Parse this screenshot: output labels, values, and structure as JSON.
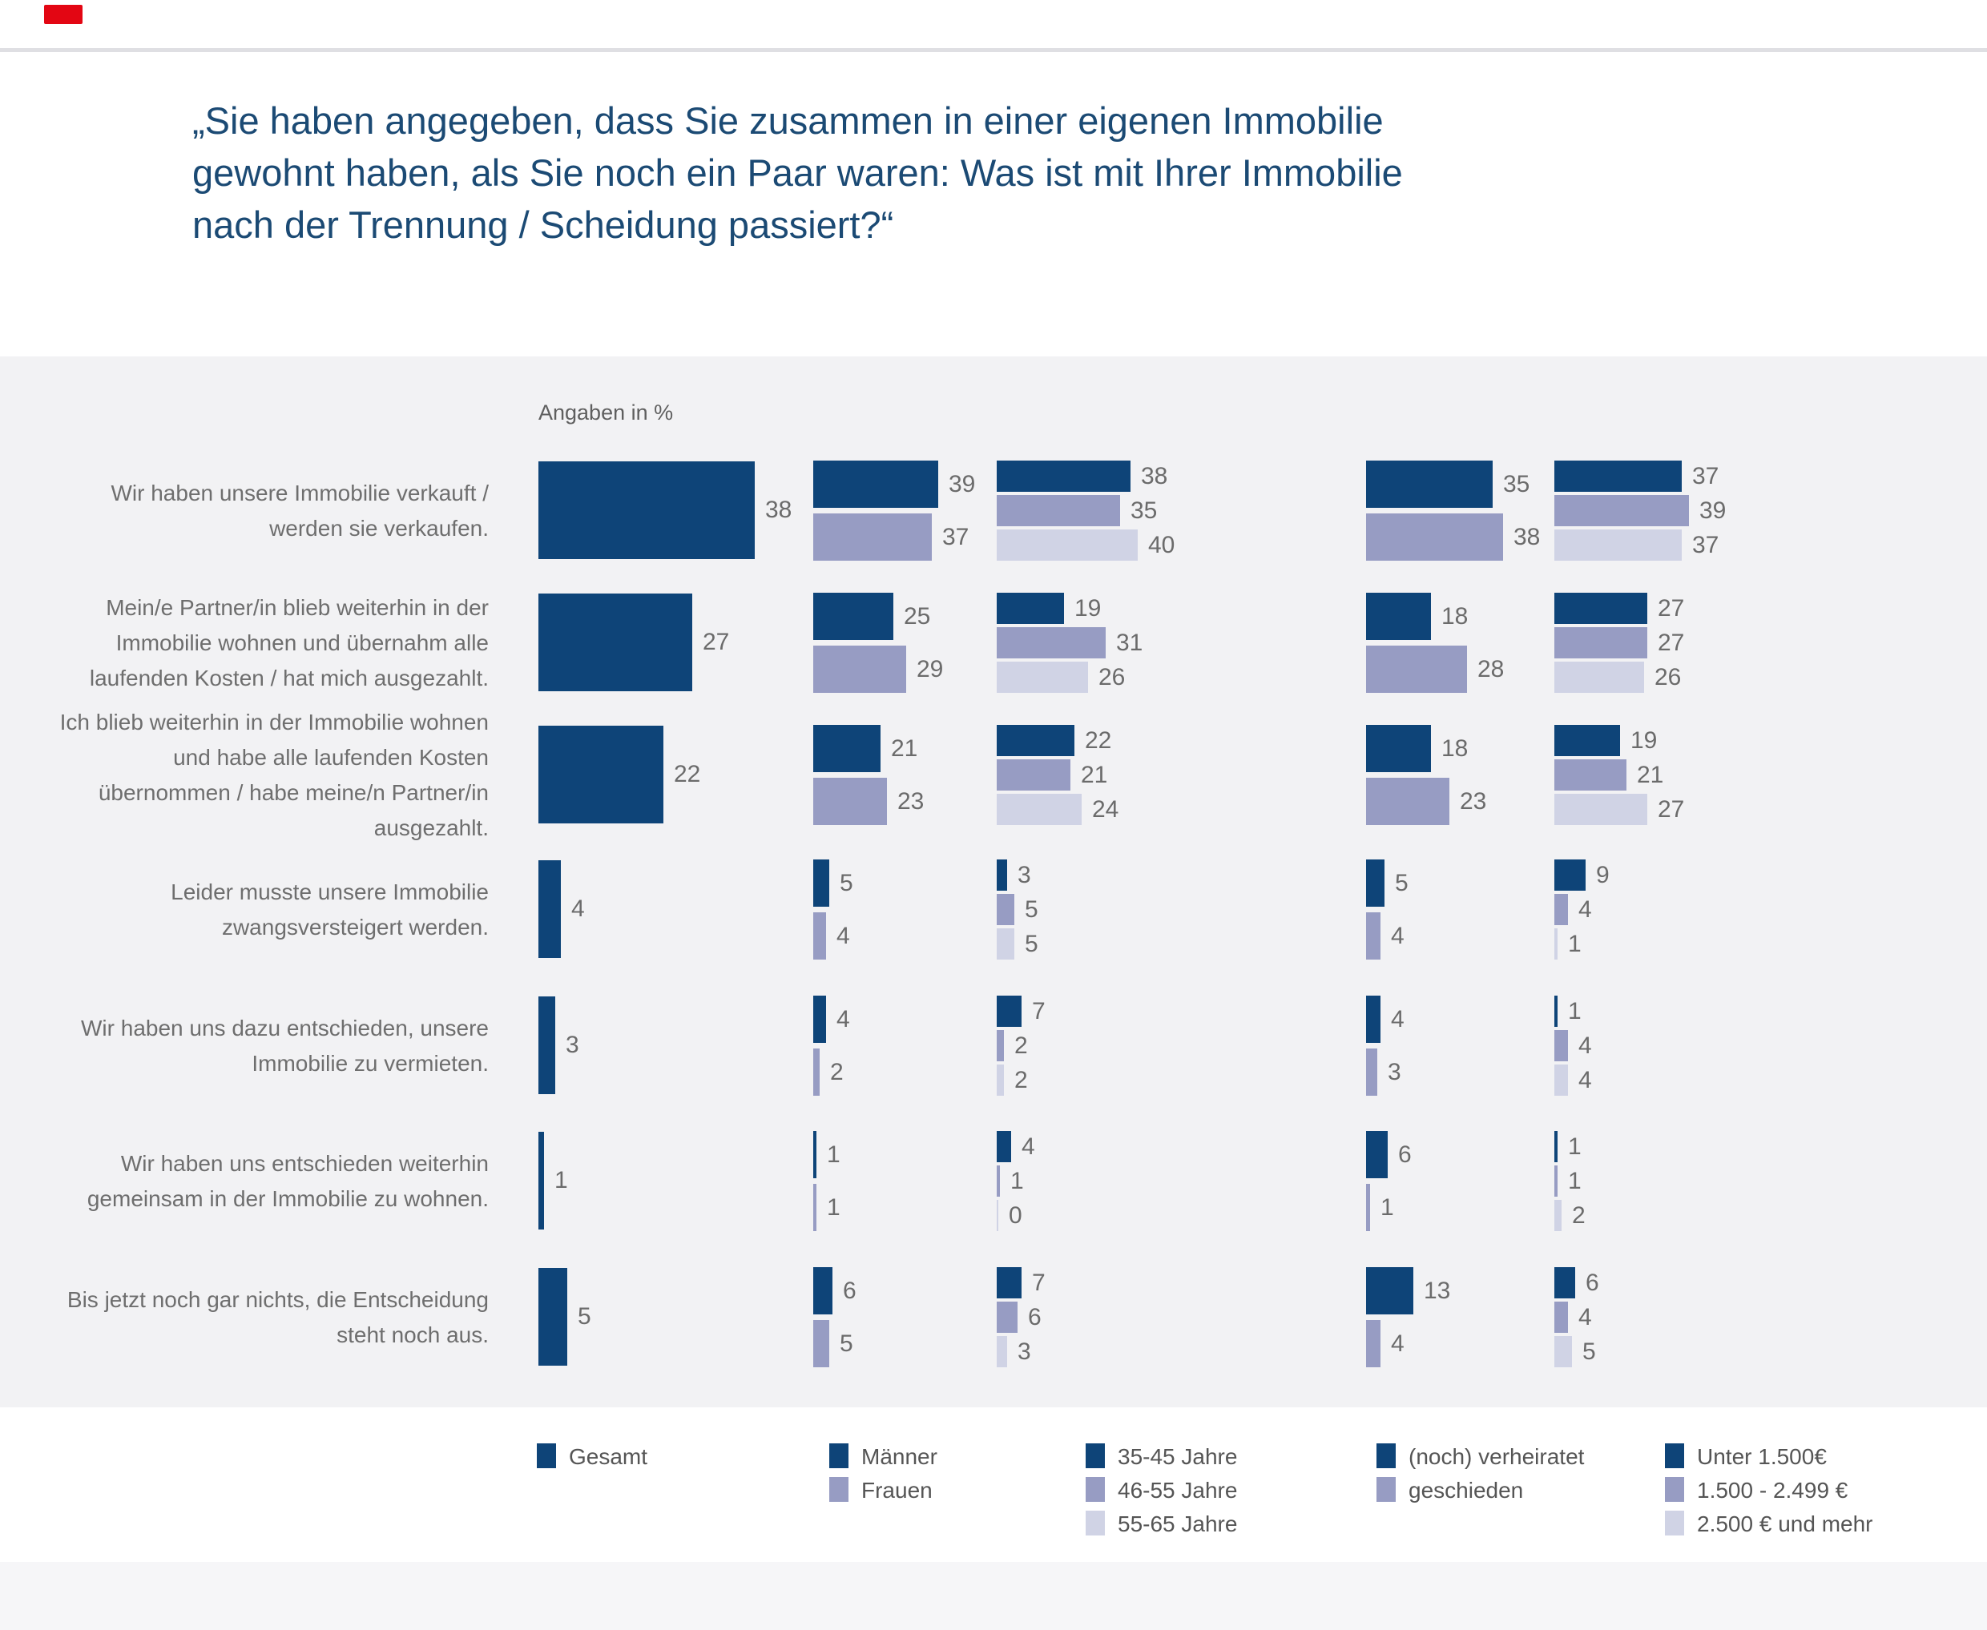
{
  "page": {
    "title_lines": [
      "„Sie haben angegeben, dass Sie zusammen in einer eigenen Immobilie",
      "gewohnt haben, als Sie noch ein Paar waren: Was ist mit Ihrer Immobilie",
      "nach der Trennung / Scheidung passiert?“"
    ],
    "axis_note": "Angaben in %"
  },
  "colors": {
    "navy": "#0e4478",
    "medium": "#979cc3",
    "light": "#d0d3e5",
    "title_navy": "#1b4a74",
    "band_gray": "#f2f2f4",
    "logo_red": "#e30613"
  },
  "chart_data": {
    "type": "bar",
    "orientation": "horizontal",
    "unit": "%",
    "axis_note": "Angaben in %",
    "title": "„Sie haben angegeben, dass Sie zusammen in einer eigenen Immobilie gewohnt haben, als Sie noch ein Paar waren: Was ist mit Ihrer Immobilie nach der Trennung / Scheidung passiert?“",
    "legend_position": "bottom",
    "grid": false,
    "groups": [
      [
        "Gesamt"
      ],
      [
        "Männer",
        "Frauen"
      ],
      [
        "35-45 Jahre",
        "46-55 Jahre",
        "55-65 Jahre"
      ],
      [
        "(noch) verheiratet",
        "geschieden"
      ],
      [
        "Unter 1.500€",
        "1.500 - 2.499 €",
        "2.500 € und mehr"
      ]
    ],
    "rows": [
      {
        "label": "Wir haben unsere Immobilie verkauft / werden sie verkaufen.",
        "values": [
          [
            38
          ],
          [
            39,
            37
          ],
          [
            38,
            35,
            40
          ],
          [
            35,
            38
          ],
          [
            37,
            39,
            37
          ]
        ]
      },
      {
        "label": "Mein/e Partner/in blieb weiterhin in der Immobilie wohnen und übernahm alle laufenden Kosten / hat mich ausgezahlt.",
        "values": [
          [
            27
          ],
          [
            25,
            29
          ],
          [
            19,
            31,
            26
          ],
          [
            18,
            28
          ],
          [
            27,
            27,
            26
          ]
        ]
      },
      {
        "label": "Ich blieb weiterhin in der Immobilie wohnen und habe alle laufenden Kosten übernommen / habe meine/n Partner/in ausgezahlt.",
        "values": [
          [
            22
          ],
          [
            21,
            23
          ],
          [
            22,
            21,
            24
          ],
          [
            18,
            23
          ],
          [
            19,
            21,
            27
          ]
        ]
      },
      {
        "label": "Leider musste unsere Immobilie zwangsversteigert werden.",
        "values": [
          [
            4
          ],
          [
            5,
            4
          ],
          [
            3,
            5,
            5
          ],
          [
            5,
            4
          ],
          [
            9,
            4,
            1
          ]
        ]
      },
      {
        "label": "Wir haben uns dazu entschieden, unsere Immobilie zu vermieten.",
        "values": [
          [
            3
          ],
          [
            4,
            2
          ],
          [
            7,
            2,
            2
          ],
          [
            4,
            3
          ],
          [
            1,
            4,
            4
          ]
        ]
      },
      {
        "label": "Wir haben uns entschieden weiterhin gemeinsam in der Immobilie zu wohnen.",
        "values": [
          [
            1
          ],
          [
            1,
            1
          ],
          [
            4,
            1,
            0
          ],
          [
            6,
            1
          ],
          [
            1,
            1,
            2
          ]
        ]
      },
      {
        "label": "Bis jetzt noch gar nichts, die Entscheidung steht noch aus.",
        "values": [
          [
            5
          ],
          [
            6,
            5
          ],
          [
            7,
            6,
            3
          ],
          [
            13,
            4
          ],
          [
            6,
            4,
            5
          ]
        ]
      }
    ]
  }
}
